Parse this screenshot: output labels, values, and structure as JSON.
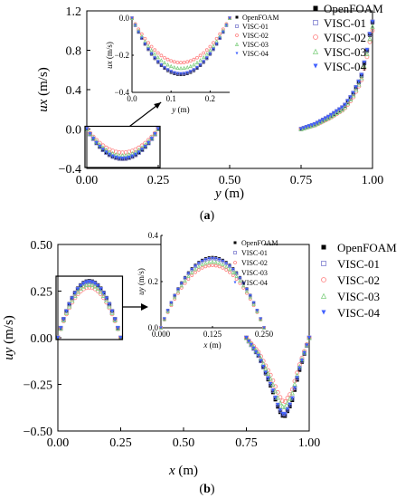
{
  "chart_data": [
    {
      "id": "a",
      "type": "scatter",
      "caption_letter": "a",
      "xlabel_var": "y",
      "xlabel_unit": " (m)",
      "ylabel_var": "ux",
      "ylabel_unit": " (m/s)",
      "xlim": [
        0,
        1.0
      ],
      "ylim": [
        -0.4,
        1.2
      ],
      "xticks": [
        "0.00",
        "0.25",
        "0.50",
        "0.75",
        "1.00"
      ],
      "yticks": [
        "1.2",
        "0.8",
        "0.4",
        "0.0",
        "−0.4"
      ],
      "legend": [
        "OpenFOAM",
        "VISC-01",
        "VISC-02",
        "VISC-03",
        "VISC-04"
      ],
      "legend_placement": "right",
      "series": [
        {
          "name": "OpenFOAM",
          "color": "#000000",
          "depth_left": 0.305,
          "right_x": [
            0.75,
            0.8,
            0.85,
            0.9,
            0.93,
            0.96,
            0.98,
            0.99,
            1.0
          ],
          "right_y": [
            0.0,
            0.05,
            0.12,
            0.22,
            0.34,
            0.52,
            0.78,
            0.95,
            1.08
          ]
        },
        {
          "name": "VISC-01",
          "color": "#7f7fd0",
          "depth_left": 0.3,
          "right_x": [
            0.75,
            0.8,
            0.85,
            0.9,
            0.93,
            0.96,
            0.98,
            0.99,
            1.0
          ],
          "right_y": [
            0.0,
            0.05,
            0.13,
            0.23,
            0.35,
            0.53,
            0.79,
            0.96,
            1.09
          ]
        },
        {
          "name": "VISC-02",
          "color": "#ff7f7f",
          "depth_left": 0.24,
          "right_x": [
            0.75,
            0.8,
            0.85,
            0.9,
            0.93,
            0.96,
            0.98,
            0.99,
            1.0
          ],
          "right_y": [
            0.0,
            0.04,
            0.11,
            0.2,
            0.31,
            0.48,
            0.72,
            0.88,
            1.0
          ]
        },
        {
          "name": "VISC-03",
          "color": "#7fcf7f",
          "depth_left": 0.27,
          "right_x": [
            0.75,
            0.8,
            0.85,
            0.9,
            0.93,
            0.96,
            0.98,
            0.99,
            1.0
          ],
          "right_y": [
            0.0,
            0.045,
            0.12,
            0.21,
            0.33,
            0.5,
            0.75,
            0.91,
            1.04
          ]
        },
        {
          "name": "VISC-04",
          "color": "#4060ff",
          "depth_left": 0.3,
          "right_x": [
            0.75,
            0.8,
            0.85,
            0.9,
            0.93,
            0.96,
            0.98,
            0.99,
            1.0
          ],
          "right_y": [
            0.0,
            0.05,
            0.13,
            0.23,
            0.35,
            0.53,
            0.79,
            0.96,
            1.09
          ]
        }
      ],
      "inset": {
        "xlabel_var": "y",
        "xlabel_unit": " (m)",
        "ylabel_var": "ux",
        "ylabel_unit": " (m/s)",
        "xlim": [
          0,
          0.25
        ],
        "ylim": [
          -0.4,
          0.0
        ],
        "xticks": [
          "0.0",
          "0.1",
          "0.2"
        ],
        "yticks": [
          "0.0",
          "−0.2",
          "−0.4"
        ],
        "legend": [
          "OpenFOAM",
          "VISC-01",
          "VISC-02",
          "VISC-03",
          "VISC-04"
        ]
      }
    },
    {
      "id": "b",
      "type": "scatter",
      "caption_letter": "b",
      "xlabel_var": "x",
      "xlabel_unit": " (m)",
      "ylabel_var": "uy",
      "ylabel_unit": " (m/s)",
      "xlim": [
        0,
        1.0
      ],
      "ylim": [
        -0.5,
        0.5
      ],
      "xticks": [
        "0.00",
        "0.25",
        "0.50",
        "0.75",
        "1.00"
      ],
      "yticks": [
        "0.50",
        "0.25",
        "0.00",
        "−0.25",
        "−0.50"
      ],
      "legend": [
        "OpenFOAM",
        "VISC-01",
        "VISC-02",
        "VISC-03",
        "VISC-04"
      ],
      "legend_placement": "right",
      "series": [
        {
          "name": "OpenFOAM",
          "color": "#000000",
          "peak_left": 0.305,
          "right_x": [
            0.75,
            0.8,
            0.85,
            0.88,
            0.9,
            0.93,
            0.96,
            1.0
          ],
          "right_y": [
            0.0,
            -0.1,
            -0.27,
            -0.39,
            -0.43,
            -0.35,
            -0.18,
            0.0
          ]
        },
        {
          "name": "VISC-01",
          "color": "#7f7fd0",
          "peak_left": 0.3,
          "right_x": [
            0.75,
            0.8,
            0.85,
            0.88,
            0.9,
            0.93,
            0.96,
            1.0
          ],
          "right_y": [
            0.0,
            -0.1,
            -0.26,
            -0.38,
            -0.42,
            -0.34,
            -0.17,
            0.0
          ]
        },
        {
          "name": "VISC-02",
          "color": "#ff7f7f",
          "peak_left": 0.27,
          "right_x": [
            0.75,
            0.8,
            0.85,
            0.88,
            0.9,
            0.93,
            0.96,
            1.0
          ],
          "right_y": [
            0.0,
            -0.08,
            -0.21,
            -0.31,
            -0.35,
            -0.29,
            -0.15,
            0.0
          ]
        },
        {
          "name": "VISC-03",
          "color": "#7fcf7f",
          "peak_left": 0.285,
          "right_x": [
            0.75,
            0.8,
            0.85,
            0.88,
            0.9,
            0.93,
            0.96,
            1.0
          ],
          "right_y": [
            0.0,
            -0.09,
            -0.23,
            -0.34,
            -0.38,
            -0.31,
            -0.16,
            0.0
          ]
        },
        {
          "name": "VISC-04",
          "color": "#4060ff",
          "peak_left": 0.3,
          "right_x": [
            0.75,
            0.8,
            0.85,
            0.88,
            0.9,
            0.93,
            0.96,
            1.0
          ],
          "right_y": [
            0.0,
            -0.1,
            -0.26,
            -0.38,
            -0.42,
            -0.34,
            -0.17,
            0.0
          ]
        }
      ],
      "inset": {
        "xlabel_var": "x",
        "xlabel_unit": " (m)",
        "ylabel_var": "uy",
        "ylabel_unit": " (m/s)",
        "xlim": [
          0,
          0.25
        ],
        "ylim": [
          0,
          0.4
        ],
        "xticks": [
          "0.000",
          "0.125",
          "0.250"
        ],
        "yticks": [
          "0.4",
          "0.2",
          "0.0"
        ],
        "legend": [
          "OpenFOAM",
          "VISC-01",
          "VISC-02",
          "VISC-03",
          "VISC-04"
        ]
      }
    }
  ]
}
